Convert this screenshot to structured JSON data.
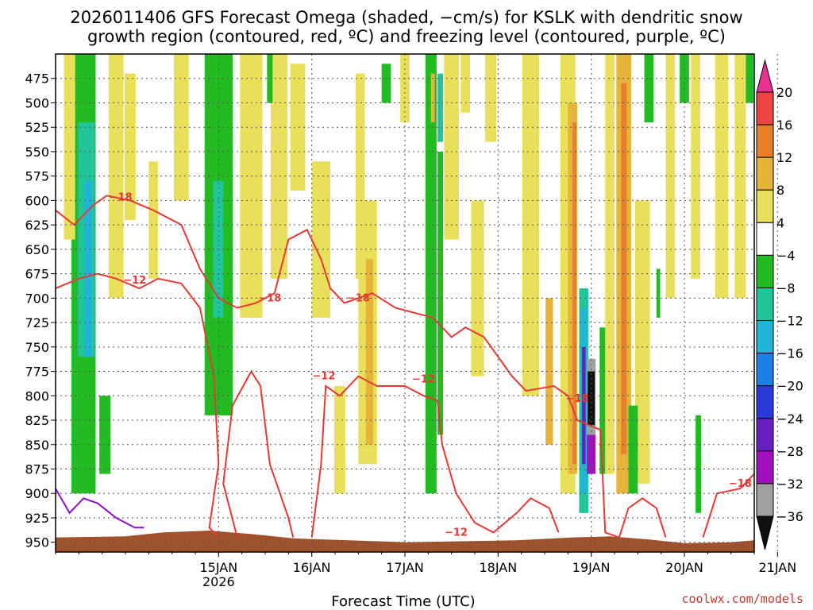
{
  "chart_data": {
    "type": "heatmap",
    "title_line1": "2026011406 GFS Forecast Omega (shaded, −cm/s) for KSLK with dendritic snow",
    "title_line2": "growth region (contoured, red, ºC) and freezing level (contoured, purple, ºC)",
    "xlabel": "Forecast Time (UTC)",
    "credit": "coolwx.com/models",
    "x_ticks": [
      {
        "label": "15JAN",
        "sub": "2026",
        "day": 1
      },
      {
        "label": "16JAN",
        "sub": "",
        "day": 2
      },
      {
        "label": "17JAN",
        "sub": "",
        "day": 3
      },
      {
        "label": "18JAN",
        "sub": "",
        "day": 4
      },
      {
        "label": "19JAN",
        "sub": "",
        "day": 5
      },
      {
        "label": "20JAN",
        "sub": "",
        "day": 6
      },
      {
        "label": "21JAN",
        "sub": "",
        "day": 7
      }
    ],
    "xlim_days": [
      -0.75,
      6.75
    ],
    "y_ticks": [
      475,
      500,
      525,
      550,
      575,
      600,
      625,
      650,
      675,
      700,
      725,
      750,
      775,
      800,
      825,
      850,
      875,
      900,
      925,
      950
    ],
    "ylim_hpa": [
      450,
      960
    ],
    "colorbar": {
      "labels": [
        "20",
        "16",
        "12",
        "8",
        "4",
        "−4",
        "−8",
        "−12",
        "−16",
        "−20",
        "−24",
        "−28",
        "−32",
        "−36"
      ],
      "colors": [
        "#e8308f",
        "#ef4444",
        "#e8802a",
        "#e6b43a",
        "#e8e05a",
        "#ffffff",
        "#22bb22",
        "#22c49a",
        "#22b4d8",
        "#1e7fe6",
        "#2a3ad8",
        "#6a20c0",
        "#a010c0",
        "#a0a0a0",
        "#111111"
      ]
    },
    "contour_labels": [
      {
        "text": "−18",
        "day": -0.05,
        "hpa": 597
      },
      {
        "text": "−12",
        "day": 0.1,
        "hpa": 682
      },
      {
        "text": "−18",
        "day": 1.55,
        "hpa": 700
      },
      {
        "text": "−18",
        "day": 2.5,
        "hpa": 700
      },
      {
        "text": "−12",
        "day": 2.13,
        "hpa": 780
      },
      {
        "text": "−12",
        "day": 3.2,
        "hpa": 783
      },
      {
        "text": "−12",
        "day": 3.55,
        "hpa": 940
      },
      {
        "text": "−18",
        "day": 4.85,
        "hpa": 803
      },
      {
        "text": "−18",
        "day": 6.6,
        "hpa": 890
      }
    ]
  },
  "icons": {
    "colorbar_top": "up-triangle",
    "colorbar_bottom": "down-triangle"
  }
}
